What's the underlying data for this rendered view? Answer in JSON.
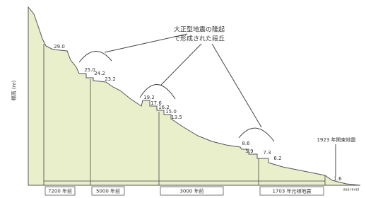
{
  "caption": {
    "line1": "大正型地震の隆起",
    "line2": "で形成された段丘"
  },
  "y_axis_label": "標高 (m)",
  "elevations": [
    "29.0",
    "25.0",
    "24.2",
    "23.2",
    "19.2",
    "17.6",
    "16.2",
    "15.0",
    "13.5",
    "8.6",
    "5.9",
    "7.3",
    "6.2",
    "1.6"
  ],
  "event_label": "1923 年関東地震",
  "sea_level_label": "sea level",
  "periods": [
    "7200 年前",
    "5000 年前",
    "3000 年前",
    "1703 年元禄地震"
  ]
}
